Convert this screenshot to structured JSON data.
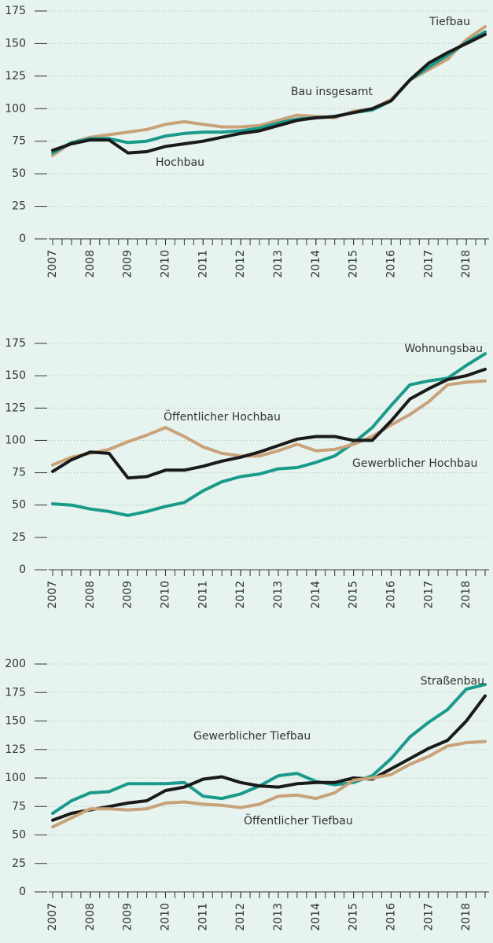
{
  "chart_data": [
    {
      "type": "line",
      "x": [
        2007,
        2007.5,
        2008,
        2008.5,
        2009,
        2009.5,
        2010,
        2010.5,
        2011,
        2011.5,
        2012,
        2012.5,
        2013,
        2013.5,
        2014,
        2014.5,
        2015,
        2015.5,
        2016,
        2016.5,
        2017,
        2017.5,
        2018,
        2018.5
      ],
      "xlim": [
        2007,
        2018.5
      ],
      "xticks": [
        2007,
        2008,
        2009,
        2010,
        2011,
        2012,
        2013,
        2014,
        2015,
        2016,
        2017,
        2018
      ],
      "ylim": [
        0,
        175
      ],
      "yticks": [
        0,
        25,
        50,
        75,
        100,
        125,
        150,
        175
      ],
      "grid": true,
      "series": [
        {
          "name": "Tiefbau",
          "color": "#c9a27a",
          "values": [
            64,
            74,
            78,
            80,
            82,
            84,
            88,
            90,
            88,
            86,
            86,
            87,
            91,
            95,
            94,
            93,
            98,
            100,
            107,
            122,
            130,
            138,
            153,
            163
          ]
        },
        {
          "name": "Bau insgesamt",
          "color": "#1a9a8a",
          "values": [
            66,
            74,
            77,
            77,
            74,
            75,
            79,
            81,
            82,
            82,
            83,
            85,
            89,
            92,
            93,
            94,
            97,
            99,
            106,
            122,
            132,
            141,
            151,
            159
          ]
        },
        {
          "name": "Hochbau",
          "color": "#1a1a1a",
          "values": [
            68,
            73,
            76,
            76,
            66,
            67,
            71,
            73,
            75,
            78,
            81,
            83,
            87,
            91,
            93,
            94,
            97,
            100,
            106,
            122,
            135,
            143,
            150,
            157
          ]
        }
      ]
    },
    {
      "type": "line",
      "x": [
        2007,
        2007.5,
        2008,
        2008.5,
        2009,
        2009.5,
        2010,
        2010.5,
        2011,
        2011.5,
        2012,
        2012.5,
        2013,
        2013.5,
        2014,
        2014.5,
        2015,
        2015.5,
        2016,
        2016.5,
        2017,
        2017.5,
        2018,
        2018.5
      ],
      "xlim": [
        2007,
        2018.5
      ],
      "xticks": [
        2007,
        2008,
        2009,
        2010,
        2011,
        2012,
        2013,
        2014,
        2015,
        2016,
        2017,
        2018
      ],
      "ylim": [
        0,
        175
      ],
      "yticks": [
        0,
        25,
        50,
        75,
        100,
        125,
        150,
        175
      ],
      "grid": true,
      "series": [
        {
          "name": "Wohnungsbau",
          "color": "#1a9a8a",
          "values": [
            51,
            50,
            47,
            45,
            42,
            45,
            49,
            52,
            61,
            68,
            72,
            74,
            78,
            79,
            83,
            88,
            98,
            110,
            127,
            143,
            146,
            148,
            158,
            167
          ]
        },
        {
          "name": "Öffentlicher Hochbau",
          "color": "#c9a27a",
          "values": [
            81,
            87,
            90,
            93,
            99,
            104,
            110,
            103,
            95,
            90,
            88,
            88,
            92,
            97,
            92,
            93,
            97,
            103,
            112,
            120,
            130,
            143,
            145,
            146
          ]
        },
        {
          "name": "Gewerblicher Hochbau",
          "color": "#1a1a1a",
          "values": [
            76,
            85,
            91,
            90,
            71,
            72,
            77,
            77,
            80,
            84,
            87,
            91,
            96,
            101,
            103,
            103,
            100,
            100,
            115,
            132,
            140,
            147,
            150,
            155
          ]
        }
      ]
    },
    {
      "type": "line",
      "x": [
        2007,
        2007.5,
        2008,
        2008.5,
        2009,
        2009.5,
        2010,
        2010.5,
        2011,
        2011.5,
        2012,
        2012.5,
        2013,
        2013.5,
        2014,
        2014.5,
        2015,
        2015.5,
        2016,
        2016.5,
        2017,
        2017.5,
        2018,
        2018.5
      ],
      "xlim": [
        2007,
        2018.5
      ],
      "xticks": [
        2007,
        2008,
        2009,
        2010,
        2011,
        2012,
        2013,
        2014,
        2015,
        2016,
        2017,
        2018
      ],
      "ylim": [
        0,
        200
      ],
      "yticks": [
        0,
        25,
        50,
        75,
        100,
        125,
        150,
        175,
        200
      ],
      "grid": true,
      "series": [
        {
          "name": "Straßenbau",
          "color": "#1a9a8a",
          "values": [
            69,
            80,
            87,
            88,
            95,
            95,
            95,
            96,
            84,
            82,
            86,
            93,
            102,
            104,
            97,
            94,
            96,
            102,
            117,
            136,
            149,
            160,
            178,
            182
          ]
        },
        {
          "name": "Gewerblicher Tiefbau",
          "color": "#1a1a1a",
          "values": [
            63,
            69,
            72,
            75,
            78,
            80,
            89,
            92,
            99,
            101,
            96,
            93,
            92,
            95,
            96,
            96,
            100,
            99,
            108,
            117,
            126,
            133,
            150,
            172
          ]
        },
        {
          "name": "Öffentlicher Tiefbau",
          "color": "#c9a27a",
          "values": [
            57,
            65,
            73,
            73,
            72,
            73,
            78,
            79,
            77,
            76,
            74,
            77,
            84,
            85,
            82,
            87,
            98,
            100,
            103,
            112,
            119,
            128,
            131,
            132
          ]
        }
      ]
    }
  ]
}
